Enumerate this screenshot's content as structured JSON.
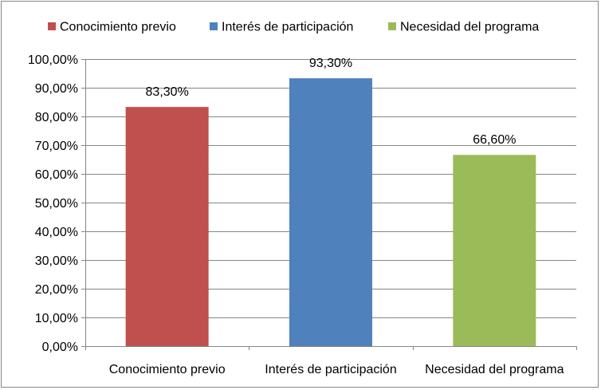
{
  "chart_data": {
    "type": "bar",
    "categories": [
      "Conocimiento previo",
      "Interés de participación",
      "Necesidad del programa"
    ],
    "values": [
      83.3,
      93.3,
      66.6
    ],
    "data_labels": [
      "83,30%",
      "93,30%",
      "66,60%"
    ],
    "ylim": [
      0,
      100
    ],
    "yticks": [
      0,
      10,
      20,
      30,
      40,
      50,
      60,
      70,
      80,
      90,
      100
    ],
    "ytick_labels": [
      "0,00%",
      "10,00%",
      "20,00%",
      "30,00%",
      "40,00%",
      "50,00%",
      "60,00%",
      "70,00%",
      "80,00%",
      "90,00%",
      "100,00%"
    ],
    "colors": [
      "#c0504d",
      "#4f81bd",
      "#9bbb59"
    ],
    "legend": {
      "position": "top",
      "entries": [
        "Conocimiento previo",
        "Interés de participación",
        "Necesidad del programa"
      ]
    },
    "grid": true
  }
}
